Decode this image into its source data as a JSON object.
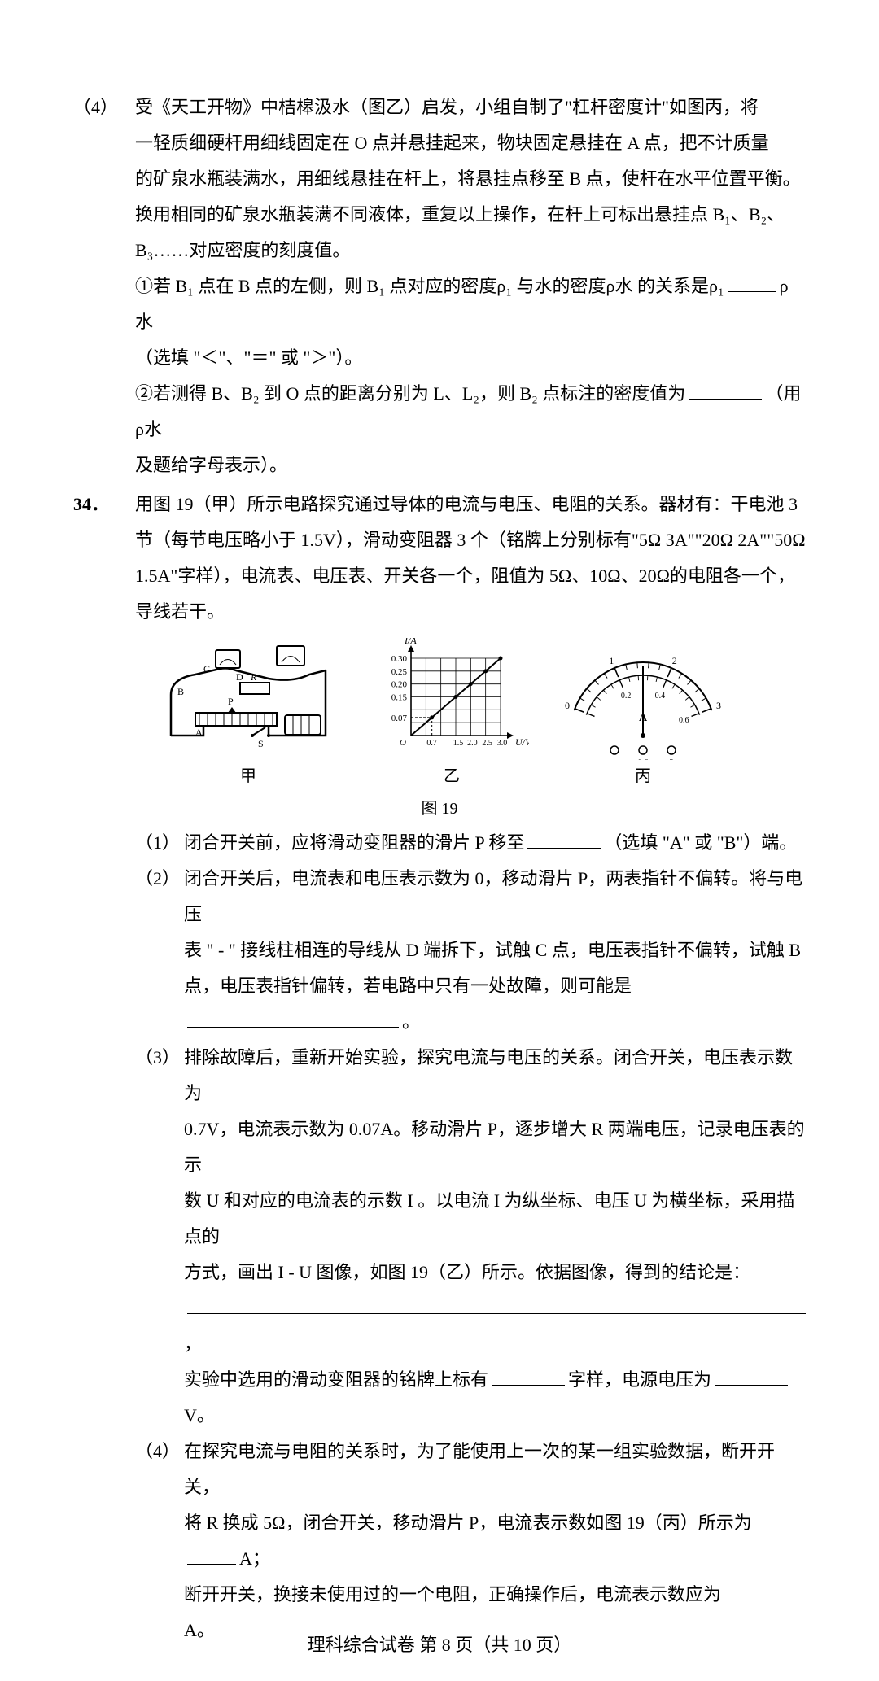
{
  "q33_4": {
    "sub_num": "（4）",
    "line1": "受《天工开物》中桔槔汲水（图乙）启发，小组自制了\"杠杆密度计\"如图丙，将",
    "line2": "一轻质细硬杆用细线固定在 O 点并悬挂起来，物块固定悬挂在 A 点，把不计质量",
    "line3": "的矿泉水瓶装满水，用细线悬挂在杆上，将悬挂点移至 B 点，使杆在水平位置平衡。",
    "line4": "换用相同的矿泉水瓶装满不同液体，重复以上操作，在杆上可标出悬挂点 B₁、B₂、",
    "line5": "B₃……对应密度的刻度值。",
    "circ1_a": "①若 B₁ 点在 B 点的左侧，则 B₁ 点对应的密度ρ₁ 与水的密度ρ水 的关系是ρ₁",
    "circ1_b": "ρ水",
    "circ1_c": "（选填 \"＜\"、\"＝\" 或 \"＞\"）。",
    "circ2_a": "②若测得 B、B₂ 到 O 点的距离分别为 L、L₂，则 B₂ 点标注的密度值为",
    "circ2_b": "（用ρ水",
    "circ2_c": "及题给字母表示）。"
  },
  "q34": {
    "num": "34．",
    "intro1": "用图 19（甲）所示电路探究通过导体的电流与电压、电阻的关系。器材有：干电池 3",
    "intro2": "节（每节电压略小于 1.5V），滑动变阻器 3 个（铭牌上分别标有\"5Ω 3A\"\"20Ω 2A\"\"50Ω",
    "intro3": "1.5A\"字样），电流表、电压表、开关各一个，阻值为 5Ω、10Ω、20Ω的电阻各一个，",
    "intro4": "导线若干。",
    "fig_caption": "图 19",
    "s1_num": "（1）",
    "s1_a": "闭合开关前，应将滑动变阻器的滑片 P 移至",
    "s1_b": "（选填 \"A\" 或 \"B\"）端。",
    "s2_num": "（2）",
    "s2_l1": "闭合开关后，电流表和电压表示数为 0，移动滑片 P，两表指针不偏转。将与电压",
    "s2_l2": "表 \" - \" 接线柱相连的导线从 D 端拆下，试触 C 点，电压表指针不偏转，试触 B",
    "s2_l3a": "点，电压表指针偏转，若电路中只有一处故障，则可能是",
    "s2_l3b": "。",
    "s3_num": "（3）",
    "s3_l1": "排除故障后，重新开始实验，探究电流与电压的关系。闭合开关，电压表示数为",
    "s3_l2": "0.7V，电流表示数为 0.07A。移动滑片 P，逐步增大 R 两端电压，记录电压表的示",
    "s3_l3": "数 U 和对应的电流表的示数 I 。以电流 I 为纵坐标、电压 U 为横坐标，采用描点的",
    "s3_l4": "方式，画出 I - U 图像，如图 19（乙）所示。依据图像，得到的结论是：",
    "s3_l5_trail": "，",
    "s3_l6a": "实验中选用的滑动变阻器的铭牌上标有",
    "s3_l6b": "字样，电源电压为",
    "s3_l6c": "V。",
    "s4_num": "（4）",
    "s4_l1": "在探究电流与电阻的关系时，为了能使用上一次的某一组实验数据，断开开关，",
    "s4_l2a": "将 R 换成 5Ω，闭合开关，移动滑片 P，电流表示数如图 19（丙）所示为",
    "s4_l2b": "A；",
    "s4_l3a": "断开开关，换接未使用过的一个电阻，正确操作后，电流表示数应为",
    "s4_l3b": "A。"
  },
  "fig19": {
    "jia": {
      "label": "甲",
      "letters": [
        "A",
        "B",
        "C",
        "D",
        "P",
        "R",
        "S"
      ]
    },
    "yi": {
      "label": "乙",
      "y_axis_label": "I/A",
      "y_ticks": [
        "0.30",
        "0.25",
        "0.20",
        "0.15",
        "0.07"
      ],
      "x_axis_label": "U/V",
      "x_ticks": [
        "O",
        "0.7",
        "1.5",
        "2.0",
        "2.5",
        "3.0"
      ],
      "xlim": [
        0,
        3.0
      ],
      "ylim": [
        0,
        0.3
      ],
      "grid_color": "#000000",
      "line_color": "#000000",
      "bg": "#ffffff",
      "points": [
        {
          "x": 0.7,
          "y": 0.07
        },
        {
          "x": 1.5,
          "y": 0.15
        },
        {
          "x": 2.0,
          "y": 0.2
        },
        {
          "x": 2.5,
          "y": 0.25
        },
        {
          "x": 3.0,
          "y": 0.3
        }
      ]
    },
    "bing": {
      "label": "丙",
      "upper_scale": [
        "0",
        "1",
        "2",
        "3"
      ],
      "upper_minor": [
        "0.2",
        "0.4",
        "0.6"
      ],
      "lower_scale": [
        "-",
        "0",
        "0.6",
        "3"
      ],
      "face_label": "A",
      "needle_color": "#000000"
    }
  },
  "footer": "理科综合试卷  第 8 页（共 10 页）",
  "colors": {
    "text": "#000000",
    "bg": "#ffffff"
  }
}
